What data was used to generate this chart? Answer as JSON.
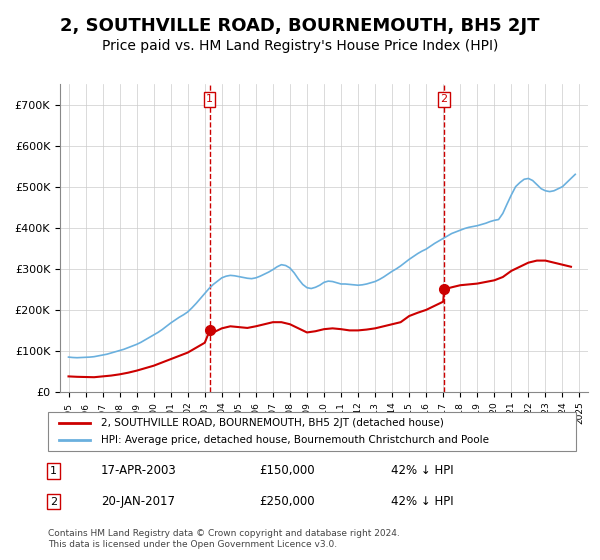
{
  "title": "2, SOUTHVILLE ROAD, BOURNEMOUTH, BH5 2JT",
  "subtitle": "Price paid vs. HM Land Registry's House Price Index (HPI)",
  "title_fontsize": 13,
  "subtitle_fontsize": 10,
  "background_color": "#ffffff",
  "plot_bg_color": "#ffffff",
  "grid_color": "#cccccc",
  "hpi_color": "#6ab0de",
  "price_color": "#cc0000",
  "vline_color": "#cc0000",
  "ylim": [
    0,
    750000
  ],
  "yticks": [
    0,
    100000,
    200000,
    300000,
    400000,
    500000,
    600000,
    700000
  ],
  "ytick_labels": [
    "£0",
    "£100K",
    "£200K",
    "£300K",
    "£400K",
    "£500K",
    "£600K",
    "£700K"
  ],
  "xtick_years": [
    "1995",
    "1996",
    "1997",
    "1998",
    "1999",
    "2000",
    "2001",
    "2002",
    "2003",
    "2004",
    "2005",
    "2006",
    "2007",
    "2008",
    "2009",
    "2010",
    "2011",
    "2012",
    "2013",
    "2014",
    "2015",
    "2016",
    "2017",
    "2018",
    "2019",
    "2020",
    "2021",
    "2022",
    "2023",
    "2024",
    "2025"
  ],
  "sale1_year": 2003.29,
  "sale1_price": 150000,
  "sale2_year": 2017.05,
  "sale2_price": 250000,
  "legend_line1": "2, SOUTHVILLE ROAD, BOURNEMOUTH, BH5 2JT (detached house)",
  "legend_line2": "HPI: Average price, detached house, Bournemouth Christchurch and Poole",
  "annotation1_label": "1",
  "annotation2_label": "2",
  "table_row1": [
    "1",
    "17-APR-2003",
    "£150,000",
    "42% ↓ HPI"
  ],
  "table_row2": [
    "2",
    "20-JAN-2017",
    "£250,000",
    "42% ↓ HPI"
  ],
  "footnote": "Contains HM Land Registry data © Crown copyright and database right 2024.\nThis data is licensed under the Open Government Licence v3.0.",
  "hpi_x": [
    1995.0,
    1995.25,
    1995.5,
    1995.75,
    1996.0,
    1996.25,
    1996.5,
    1996.75,
    1997.0,
    1997.25,
    1997.5,
    1997.75,
    1998.0,
    1998.25,
    1998.5,
    1998.75,
    1999.0,
    1999.25,
    1999.5,
    1999.75,
    2000.0,
    2000.25,
    2000.5,
    2000.75,
    2001.0,
    2001.25,
    2001.5,
    2001.75,
    2002.0,
    2002.25,
    2002.5,
    2002.75,
    2003.0,
    2003.25,
    2003.5,
    2003.75,
    2004.0,
    2004.25,
    2004.5,
    2004.75,
    2005.0,
    2005.25,
    2005.5,
    2005.75,
    2006.0,
    2006.25,
    2006.5,
    2006.75,
    2007.0,
    2007.25,
    2007.5,
    2007.75,
    2008.0,
    2008.25,
    2008.5,
    2008.75,
    2009.0,
    2009.25,
    2009.5,
    2009.75,
    2010.0,
    2010.25,
    2010.5,
    2010.75,
    2011.0,
    2011.25,
    2011.5,
    2011.75,
    2012.0,
    2012.25,
    2012.5,
    2012.75,
    2013.0,
    2013.25,
    2013.5,
    2013.75,
    2014.0,
    2014.25,
    2014.5,
    2014.75,
    2015.0,
    2015.25,
    2015.5,
    2015.75,
    2016.0,
    2016.25,
    2016.5,
    2016.75,
    2017.0,
    2017.25,
    2017.5,
    2017.75,
    2018.0,
    2018.25,
    2018.5,
    2018.75,
    2019.0,
    2019.25,
    2019.5,
    2019.75,
    2020.0,
    2020.25,
    2020.5,
    2020.75,
    2021.0,
    2021.25,
    2021.5,
    2021.75,
    2022.0,
    2022.25,
    2022.5,
    2022.75,
    2023.0,
    2023.25,
    2023.5,
    2023.75,
    2024.0,
    2024.25,
    2024.5,
    2024.75
  ],
  "hpi_y": [
    85000,
    84000,
    83500,
    84000,
    84500,
    85000,
    86000,
    88000,
    90000,
    92000,
    95000,
    98000,
    101000,
    104000,
    108000,
    112000,
    116000,
    121000,
    127000,
    133000,
    139000,
    145000,
    152000,
    160000,
    168000,
    175000,
    182000,
    188000,
    195000,
    205000,
    216000,
    228000,
    240000,
    252000,
    262000,
    270000,
    278000,
    282000,
    284000,
    283000,
    281000,
    279000,
    277000,
    276000,
    278000,
    282000,
    287000,
    292000,
    298000,
    305000,
    310000,
    308000,
    302000,
    290000,
    275000,
    262000,
    254000,
    252000,
    255000,
    260000,
    267000,
    270000,
    269000,
    266000,
    263000,
    263000,
    262000,
    261000,
    260000,
    261000,
    263000,
    266000,
    269000,
    274000,
    280000,
    287000,
    294000,
    300000,
    307000,
    315000,
    323000,
    330000,
    337000,
    343000,
    348000,
    355000,
    362000,
    368000,
    374000,
    380000,
    386000,
    390000,
    394000,
    398000,
    401000,
    403000,
    405000,
    408000,
    411000,
    415000,
    418000,
    420000,
    435000,
    458000,
    480000,
    500000,
    510000,
    518000,
    520000,
    515000,
    505000,
    495000,
    490000,
    488000,
    490000,
    495000,
    500000,
    510000,
    520000,
    530000
  ],
  "price_x": [
    1995.0,
    1995.5,
    1996.0,
    1996.5,
    1997.0,
    1997.5,
    1998.0,
    1998.5,
    1999.0,
    1999.5,
    2000.0,
    2000.5,
    2001.0,
    2001.5,
    2002.0,
    2002.5,
    2003.0,
    2003.29,
    2003.5,
    2004.0,
    2004.5,
    2005.0,
    2005.5,
    2006.0,
    2006.5,
    2007.0,
    2007.5,
    2008.0,
    2008.5,
    2009.0,
    2009.5,
    2010.0,
    2010.5,
    2011.0,
    2011.5,
    2012.0,
    2012.5,
    2013.0,
    2013.5,
    2014.0,
    2014.5,
    2015.0,
    2015.5,
    2016.0,
    2016.5,
    2017.0,
    2017.05,
    2017.5,
    2018.0,
    2018.5,
    2019.0,
    2019.5,
    2020.0,
    2020.5,
    2021.0,
    2021.5,
    2022.0,
    2022.5,
    2023.0,
    2023.5,
    2024.0,
    2024.5
  ],
  "price_y": [
    38000,
    37000,
    36500,
    36000,
    38000,
    40000,
    43000,
    47000,
    52000,
    58000,
    64000,
    72000,
    80000,
    88000,
    96000,
    108000,
    120000,
    150000,
    145000,
    155000,
    160000,
    158000,
    156000,
    160000,
    165000,
    170000,
    170000,
    165000,
    155000,
    145000,
    148000,
    153000,
    155000,
    153000,
    150000,
    150000,
    152000,
    155000,
    160000,
    165000,
    170000,
    185000,
    193000,
    200000,
    210000,
    220000,
    250000,
    255000,
    260000,
    262000,
    264000,
    268000,
    272000,
    280000,
    295000,
    305000,
    315000,
    320000,
    320000,
    315000,
    310000,
    305000
  ]
}
